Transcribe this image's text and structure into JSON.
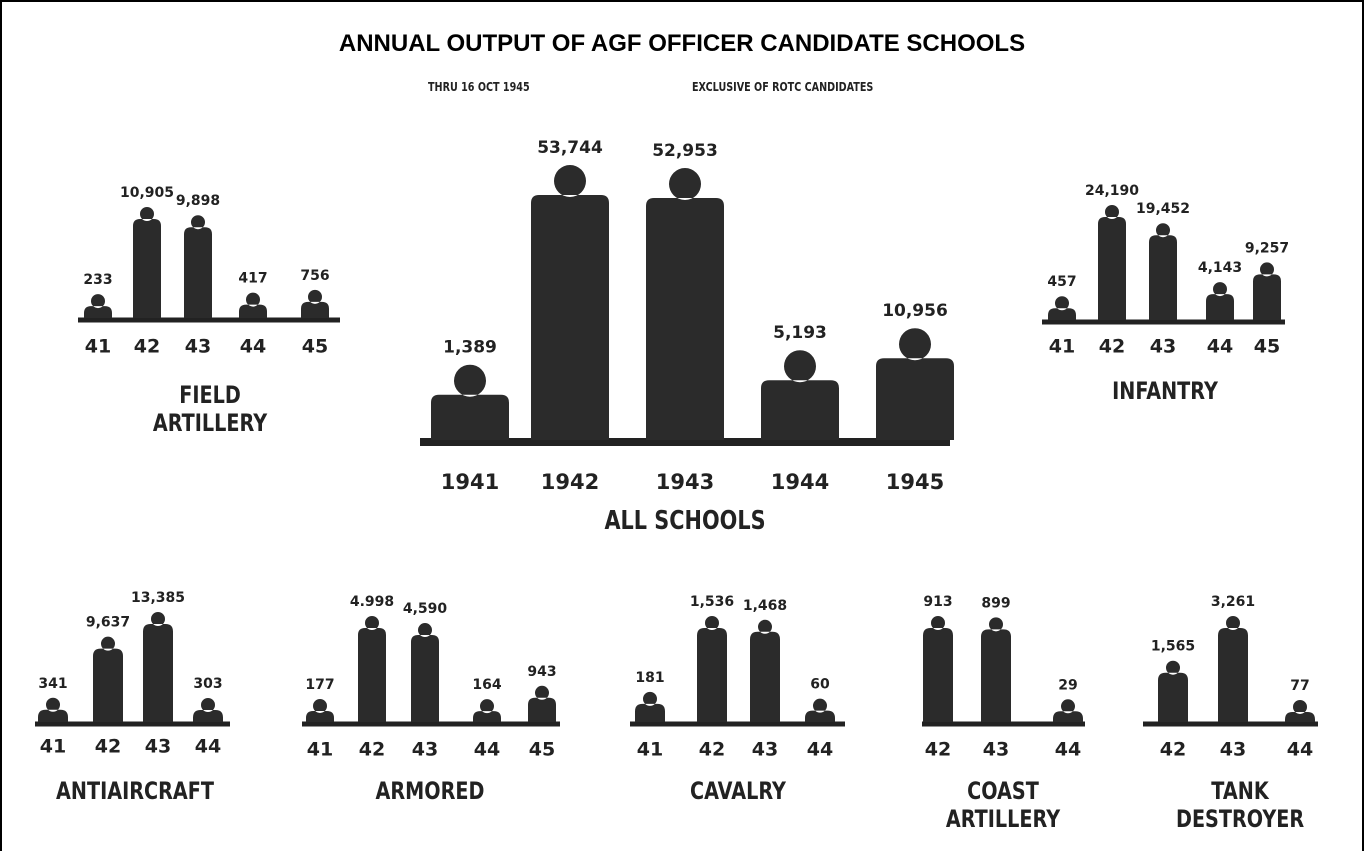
{
  "title": "ANNUAL OUTPUT OF AGF OFFICER CANDIDATE SCHOOLS",
  "notes": [
    "THRU 16 OCT 1945",
    "EXCLUSIVE OF ROTC CANDIDATES"
  ],
  "chart_data": [
    {
      "type": "pictogram",
      "title": "ALL SCHOOLS",
      "color": "#2b2b2b",
      "categories": [
        "1941",
        "1942",
        "1943",
        "1944",
        "1945"
      ],
      "values": [
        1389,
        53744,
        52953,
        5193,
        10956
      ],
      "value_labels": [
        "1,389",
        "53,744",
        "52,953",
        "5,193",
        "10,956"
      ]
    },
    {
      "type": "pictogram",
      "title": "FIELD ARTILLERY",
      "color": "#2b2b2b",
      "categories": [
        "41",
        "42",
        "43",
        "44",
        "45"
      ],
      "values": [
        233,
        10905,
        9898,
        417,
        756
      ],
      "value_labels": [
        "233",
        "10,905",
        "9,898",
        "417",
        "756"
      ]
    },
    {
      "type": "pictogram",
      "title": "INFANTRY",
      "color": "#2b2b2b",
      "categories": [
        "41",
        "42",
        "43",
        "44",
        "45"
      ],
      "values": [
        457,
        24190,
        19452,
        4143,
        9257
      ],
      "value_labels": [
        "457",
        "24,190",
        "19,452",
        "4,143",
        "9,257"
      ]
    },
    {
      "type": "pictogram",
      "title": "ANTIAIRCRAFT",
      "color": "#2b2b2b",
      "categories": [
        "41",
        "42",
        "43",
        "44"
      ],
      "values": [
        341,
        9637,
        13385,
        303
      ],
      "value_labels": [
        "341",
        "9,637",
        "13,385",
        "303"
      ]
    },
    {
      "type": "pictogram",
      "title": "ARMORED",
      "color": "#2b2b2b",
      "categories": [
        "41",
        "42",
        "43",
        "44",
        "45"
      ],
      "values": [
        177,
        4998,
        4590,
        164,
        943
      ],
      "value_labels": [
        "177",
        "4.998",
        "4,590",
        "164",
        "943"
      ]
    },
    {
      "type": "pictogram",
      "title": "CAVALRY",
      "color": "#2b2b2b",
      "categories": [
        "41",
        "42",
        "43",
        "44"
      ],
      "values": [
        181,
        1536,
        1468,
        60
      ],
      "value_labels": [
        "181",
        "1,536",
        "1,468",
        "60"
      ]
    },
    {
      "type": "pictogram",
      "title": "COAST ARTILLERY",
      "color": "#2b2b2b",
      "categories": [
        "42",
        "43",
        "44"
      ],
      "values": [
        913,
        899,
        29
      ],
      "value_labels": [
        "913",
        "899",
        "29"
      ]
    },
    {
      "type": "pictogram",
      "title": "TANK DESTROYER",
      "color": "#2b2b2b",
      "categories": [
        "42",
        "43",
        "44"
      ],
      "values": [
        1565,
        3261,
        77
      ],
      "value_labels": [
        "1,565",
        "3,261",
        "77"
      ]
    }
  ]
}
